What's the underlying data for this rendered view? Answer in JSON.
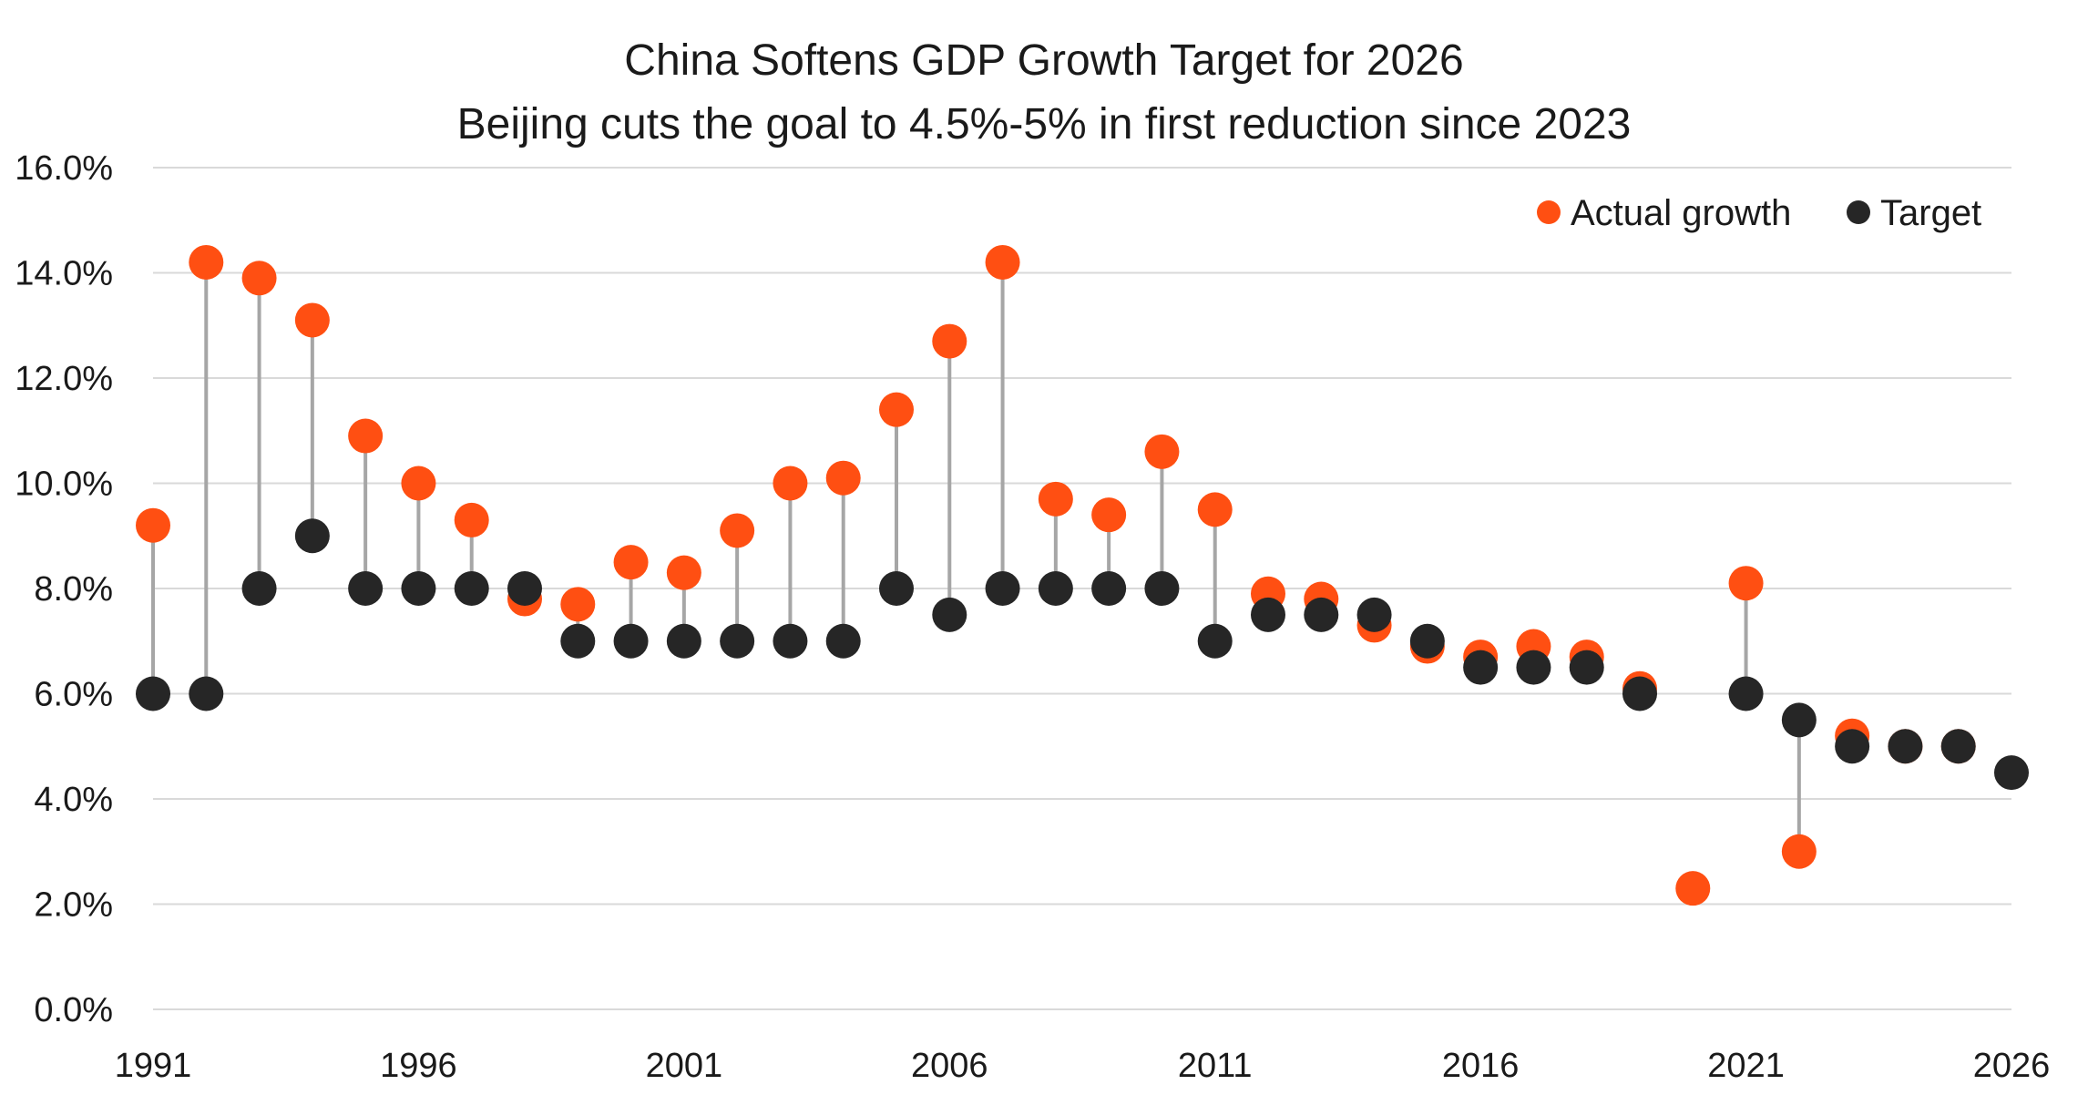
{
  "chart_data": {
    "type": "scatter",
    "title": "China Softens GDP Growth Target for 2026",
    "subtitle": "Beijing cuts the goal to 4.5%-5% in first reduction since 2023",
    "xlabel": "",
    "ylabel": "",
    "x": [
      1991,
      1992,
      1993,
      1994,
      1995,
      1996,
      1997,
      1998,
      1999,
      2000,
      2001,
      2002,
      2003,
      2004,
      2005,
      2006,
      2007,
      2008,
      2009,
      2010,
      2011,
      2012,
      2013,
      2014,
      2015,
      2016,
      2017,
      2018,
      2019,
      2020,
      2021,
      2022,
      2023,
      2024,
      2025,
      2026
    ],
    "x_ticks": [
      "1991",
      "1996",
      "2001",
      "2006",
      "2011",
      "2016",
      "2021",
      "2026"
    ],
    "x_tick_values": [
      1991,
      1996,
      2001,
      2006,
      2011,
      2016,
      2021,
      2026
    ],
    "y_ticks": [
      "0.0%",
      "2.0%",
      "4.0%",
      "6.0%",
      "8.0%",
      "10.0%",
      "12.0%",
      "14.0%",
      "16.0%"
    ],
    "y_tick_values": [
      0,
      2,
      4,
      6,
      8,
      10,
      12,
      14,
      16
    ],
    "ylim": [
      0,
      16
    ],
    "xlim": [
      1991,
      2026
    ],
    "grid": "horizontal",
    "legend_position": "top-right",
    "series": [
      {
        "name": "Actual growth",
        "color": "#ff4f12",
        "values": [
          9.2,
          14.2,
          13.9,
          13.1,
          10.9,
          10.0,
          9.3,
          7.8,
          7.7,
          8.5,
          8.3,
          9.1,
          10.0,
          10.1,
          11.4,
          12.7,
          14.2,
          9.7,
          9.4,
          10.6,
          9.5,
          7.9,
          7.8,
          7.3,
          6.9,
          6.7,
          6.9,
          6.7,
          6.1,
          2.3,
          8.1,
          3.0,
          5.2,
          5.0,
          5.0,
          null
        ]
      },
      {
        "name": "Target",
        "color": "#262626",
        "values": [
          6.0,
          6.0,
          8.0,
          9.0,
          8.0,
          8.0,
          8.0,
          8.0,
          7.0,
          7.0,
          7.0,
          7.0,
          7.0,
          7.0,
          8.0,
          7.5,
          8.0,
          8.0,
          8.0,
          8.0,
          7.0,
          7.5,
          7.5,
          7.5,
          7.0,
          6.5,
          6.5,
          6.5,
          6.0,
          null,
          6.0,
          5.5,
          5.0,
          5.0,
          5.0,
          4.5
        ]
      }
    ]
  }
}
